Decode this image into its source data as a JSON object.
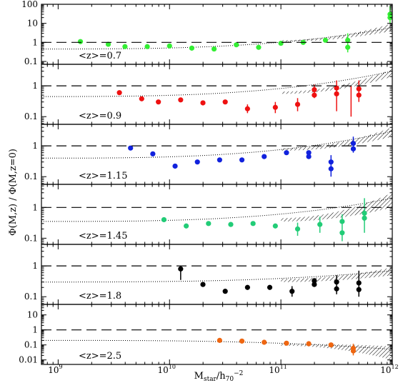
{
  "figure": {
    "ylabel": "Φ(M,z) / Φ(M,z=0)",
    "xlabel_main": "M",
    "xlabel_sub": "star",
    "xlabel_mid": "/h",
    "xlabel_sub2": "70",
    "xlabel_sup": "−2"
  },
  "chart_data": [
    {
      "type": "scatter",
      "panel": "z0.7",
      "label": "<z>=0.7",
      "color": "#33ee33",
      "x_log10_range": [
        8.85,
        12.0
      ],
      "ylim_log10": [
        -1.15,
        2.0
      ],
      "y_ticks": [
        "100",
        "10",
        "1",
        "0.1"
      ],
      "y_tick_values": [
        100,
        10,
        1,
        0.1
      ],
      "points": [
        {
          "x": 9.2,
          "y": 1.1
        },
        {
          "x": 9.45,
          "y": 0.8
        },
        {
          "x": 9.6,
          "y": 0.6
        },
        {
          "x": 9.8,
          "y": 0.6
        },
        {
          "x": 10.0,
          "y": 0.65
        },
        {
          "x": 10.2,
          "y": 0.5
        },
        {
          "x": 10.4,
          "y": 0.45
        },
        {
          "x": 10.6,
          "y": 0.75
        },
        {
          "x": 10.8,
          "y": 0.55
        },
        {
          "x": 11.0,
          "y": 0.9
        },
        {
          "x": 11.2,
          "y": 1.0
        },
        {
          "x": 11.4,
          "y": 1.3
        },
        {
          "x": 11.6,
          "y": 1.3
        },
        {
          "x": 11.6,
          "y": 0.55
        },
        {
          "x": 11.98,
          "y": 30
        },
        {
          "x": 11.98,
          "y": 20
        }
      ],
      "error_bars": [
        {
          "x": 11.6,
          "low": 0.3,
          "high": 3.0
        },
        {
          "x": 11.98,
          "low": 10,
          "high": 80
        }
      ],
      "dotted_model": {
        "left": 0.45,
        "right": 6.0
      },
      "band": {
        "low_start": 1.1,
        "high_start": 1.3,
        "low_end": 4.0,
        "high_end": 10.0
      }
    },
    {
      "type": "scatter",
      "panel": "z0.9",
      "label": "<z>=0.9",
      "color": "#ee1111",
      "x_log10_range": [
        8.85,
        12.0
      ],
      "ylim_log10": [
        -1.25,
        0.7
      ],
      "y_ticks": [
        "1",
        "0.1"
      ],
      "y_tick_values": [
        1,
        0.1
      ],
      "points": [
        {
          "x": 9.55,
          "y": 0.6
        },
        {
          "x": 9.75,
          "y": 0.38
        },
        {
          "x": 9.9,
          "y": 0.3
        },
        {
          "x": 10.1,
          "y": 0.35
        },
        {
          "x": 10.3,
          "y": 0.28
        },
        {
          "x": 10.5,
          "y": 0.3
        },
        {
          "x": 10.7,
          "y": 0.18
        },
        {
          "x": 10.95,
          "y": 0.2
        },
        {
          "x": 11.15,
          "y": 0.25
        },
        {
          "x": 11.3,
          "y": 0.75
        },
        {
          "x": 11.3,
          "y": 0.5
        },
        {
          "x": 11.5,
          "y": 0.85
        },
        {
          "x": 11.5,
          "y": 0.55
        },
        {
          "x": 11.7,
          "y": 0.8
        },
        {
          "x": 11.7,
          "y": 0.5
        }
      ],
      "error_bars": [
        {
          "x": 10.7,
          "low": 0.13,
          "high": 0.25
        },
        {
          "x": 10.95,
          "low": 0.13,
          "high": 0.3
        },
        {
          "x": 11.15,
          "low": 0.15,
          "high": 0.4
        },
        {
          "x": 11.3,
          "low": 0.4,
          "high": 1.1
        },
        {
          "x": 11.5,
          "low": 0.15,
          "high": 1.5
        },
        {
          "x": 11.63,
          "low": 0.1,
          "high": 1.0
        },
        {
          "x": 11.7,
          "low": 0.3,
          "high": 1.5
        }
      ],
      "dotted_model": {
        "left": 0.45,
        "right": 3.0
      },
      "band": {
        "low_start": 0.55,
        "high_start": 0.65,
        "low_end": 2.0,
        "high_end": 3.5
      }
    },
    {
      "type": "scatter",
      "panel": "z1.15",
      "label": "<z>=1.15",
      "color": "#1122dd",
      "x_log10_range": [
        8.85,
        12.0
      ],
      "ylim_log10": [
        -1.25,
        0.7
      ],
      "y_ticks": [
        "1",
        "0.1"
      ],
      "y_tick_values": [
        1,
        0.1
      ],
      "points": [
        {
          "x": 9.65,
          "y": 0.85
        },
        {
          "x": 9.85,
          "y": 0.55
        },
        {
          "x": 10.05,
          "y": 0.22
        },
        {
          "x": 10.25,
          "y": 0.3
        },
        {
          "x": 10.45,
          "y": 0.35
        },
        {
          "x": 10.65,
          "y": 0.35
        },
        {
          "x": 10.85,
          "y": 0.45
        },
        {
          "x": 11.05,
          "y": 0.6
        },
        {
          "x": 11.25,
          "y": 0.6
        },
        {
          "x": 11.25,
          "y": 0.45
        },
        {
          "x": 11.45,
          "y": 0.3
        },
        {
          "x": 11.45,
          "y": 0.18
        },
        {
          "x": 11.65,
          "y": 1.2
        },
        {
          "x": 11.65,
          "y": 0.8
        }
      ],
      "error_bars": [
        {
          "x": 11.45,
          "low": 0.1,
          "high": 0.5
        },
        {
          "x": 11.65,
          "low": 0.6,
          "high": 2.0
        }
      ],
      "dotted_model": {
        "left": 0.4,
        "right": 3.0
      },
      "band": {
        "low_start": 0.7,
        "high_start": 0.85,
        "low_end": 2.0,
        "high_end": 4.0
      }
    },
    {
      "type": "scatter",
      "panel": "z1.45",
      "label": "<z>=1.45",
      "color": "#22cc77",
      "x_log10_range": [
        8.85,
        12.0
      ],
      "ylim_log10": [
        -1.2,
        0.75
      ],
      "y_ticks": [
        "1",
        "0.1"
      ],
      "y_tick_values": [
        1,
        0.1
      ],
      "points": [
        {
          "x": 9.95,
          "y": 0.4
        },
        {
          "x": 10.15,
          "y": 0.25
        },
        {
          "x": 10.35,
          "y": 0.3
        },
        {
          "x": 10.55,
          "y": 0.28
        },
        {
          "x": 10.75,
          "y": 0.3
        },
        {
          "x": 10.95,
          "y": 0.25
        },
        {
          "x": 11.15,
          "y": 0.2
        },
        {
          "x": 11.35,
          "y": 0.28
        },
        {
          "x": 11.55,
          "y": 0.35
        },
        {
          "x": 11.55,
          "y": 0.15
        },
        {
          "x": 11.75,
          "y": 0.65
        },
        {
          "x": 11.75,
          "y": 0.45
        }
      ],
      "error_bars": [
        {
          "x": 11.15,
          "low": 0.12,
          "high": 0.32
        },
        {
          "x": 11.35,
          "low": 0.15,
          "high": 0.5
        },
        {
          "x": 11.55,
          "low": 0.08,
          "high": 0.6
        },
        {
          "x": 11.75,
          "low": 0.15,
          "high": 2.0
        }
      ],
      "dotted_model": {
        "left": 0.35,
        "right": 2.0
      },
      "band": {
        "low_start": 0.35,
        "high_start": 0.45,
        "low_end": 1.0,
        "high_end": 3.0
      }
    },
    {
      "type": "scatter",
      "panel": "z1.8",
      "label": "<z>=1.8",
      "color": "#000000",
      "x_log10_range": [
        8.85,
        12.0
      ],
      "ylim_log10": [
        -1.25,
        0.7
      ],
      "y_ticks": [
        "1",
        "0.1"
      ],
      "y_tick_values": [
        1,
        0.1
      ],
      "points": [
        {
          "x": 10.1,
          "y": 0.8
        },
        {
          "x": 10.3,
          "y": 0.25
        },
        {
          "x": 10.5,
          "y": 0.15
        },
        {
          "x": 10.7,
          "y": 0.2
        },
        {
          "x": 10.9,
          "y": 0.2
        },
        {
          "x": 11.1,
          "y": 0.15
        },
        {
          "x": 11.3,
          "y": 0.33
        },
        {
          "x": 11.3,
          "y": 0.25
        },
        {
          "x": 11.5,
          "y": 0.3
        },
        {
          "x": 11.5,
          "y": 0.18
        },
        {
          "x": 11.7,
          "y": 0.28
        },
        {
          "x": 11.7,
          "y": 0.17
        }
      ],
      "error_bars": [
        {
          "x": 10.1,
          "low": 0.35,
          "high": 1.0
        },
        {
          "x": 11.1,
          "low": 0.1,
          "high": 0.22
        },
        {
          "x": 11.5,
          "low": 0.12,
          "high": 0.5
        },
        {
          "x": 11.7,
          "low": 0.1,
          "high": 0.7
        }
      ],
      "dotted_model": {
        "left": 0.3,
        "right": 0.7
      },
      "band": {
        "low_start": 0.3,
        "high_start": 0.38,
        "low_end": 0.5,
        "high_end": 0.9
      }
    },
    {
      "type": "scatter",
      "panel": "z2.5",
      "label": "<z>=2.5",
      "color": "#ee6611",
      "x_log10_range": [
        8.85,
        12.0
      ],
      "ylim_log10": [
        -2.3,
        1.7
      ],
      "y_ticks": [
        "10",
        "1",
        "0.1",
        "0.01"
      ],
      "y_tick_values": [
        10,
        1,
        0.1,
        0.01
      ],
      "points": [
        {
          "x": 10.45,
          "y": 0.2
        },
        {
          "x": 10.65,
          "y": 0.18
        },
        {
          "x": 10.85,
          "y": 0.15
        },
        {
          "x": 11.05,
          "y": 0.13
        },
        {
          "x": 11.25,
          "y": 0.12
        },
        {
          "x": 11.45,
          "y": 0.1
        },
        {
          "x": 11.65,
          "y": 0.06
        },
        {
          "x": 11.65,
          "y": 0.04
        }
      ],
      "error_bars": [
        {
          "x": 11.65,
          "low": 0.02,
          "high": 0.12
        }
      ],
      "dotted_model": {
        "left": 0.2,
        "right": 0.05
      },
      "band": {
        "low_start": 0.09,
        "high_start": 0.12,
        "low_end": 0.01,
        "high_end": 0.08
      }
    }
  ],
  "x_axis": {
    "ticks": [
      {
        "exp": 9,
        "base": "10",
        "sup": "9"
      },
      {
        "exp": 10,
        "base": "10",
        "sup": "10"
      },
      {
        "exp": 11,
        "base": "10",
        "sup": "11"
      },
      {
        "exp": 12,
        "base": "10",
        "sup": "12"
      }
    ]
  }
}
